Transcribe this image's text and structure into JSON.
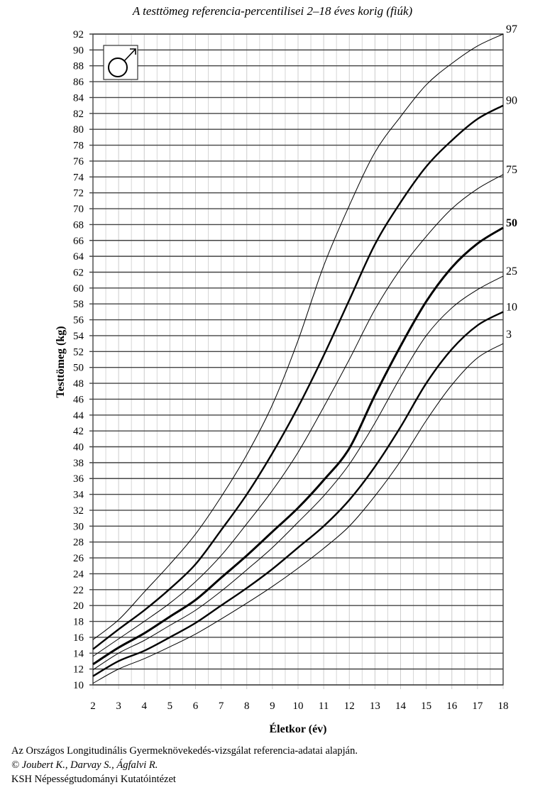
{
  "chart_data": {
    "type": "line",
    "title": "A testtömeg referencia-percentilisei 2–18 éves korig (fiúk)",
    "xlabel": "Életkor (év)",
    "ylabel": "Testtömeg (kg)",
    "xlim": [
      2,
      18
    ],
    "ylim": [
      10,
      92
    ],
    "x_ticks": [
      "2",
      "3",
      "4",
      "5",
      "6",
      "7",
      "8",
      "9",
      "10",
      "11",
      "12",
      "13",
      "14",
      "15",
      "16",
      "17",
      "18"
    ],
    "y_ticks": [
      "10",
      "12",
      "14",
      "16",
      "18",
      "20",
      "22",
      "24",
      "26",
      "28",
      "30",
      "32",
      "34",
      "36",
      "38",
      "40",
      "42",
      "44",
      "46",
      "48",
      "50",
      "52",
      "54",
      "56",
      "58",
      "60",
      "62",
      "64",
      "66",
      "68",
      "70",
      "72",
      "74",
      "76",
      "78",
      "80",
      "82",
      "84",
      "86",
      "88",
      "90",
      "92"
    ],
    "grid": {
      "horizontal_step_kg": 2,
      "vertical_step_years": 0.5
    },
    "symbol": "male-symbol",
    "x": [
      2,
      3,
      4,
      5,
      6,
      7,
      8,
      9,
      10,
      11,
      12,
      13,
      14,
      15,
      16,
      17,
      18
    ],
    "series": [
      {
        "name": "97",
        "weight": "thin",
        "values": [
          15.7,
          18.2,
          21.7,
          25.2,
          29.0,
          33.7,
          39.0,
          45.3,
          53.4,
          62.8,
          70.4,
          77.1,
          81.6,
          85.6,
          88.3,
          90.5,
          92.0
        ]
      },
      {
        "name": "90",
        "weight": "bold",
        "values": [
          14.5,
          17.0,
          19.4,
          22.1,
          25.2,
          29.5,
          34.0,
          39.2,
          45.0,
          51.5,
          58.5,
          65.5,
          70.8,
          75.3,
          78.6,
          81.3,
          83.0
        ]
      },
      {
        "name": "75",
        "weight": "thin",
        "values": [
          13.6,
          15.8,
          18.0,
          20.3,
          23.0,
          26.3,
          30.3,
          34.5,
          39.3,
          45.0,
          51.0,
          57.3,
          62.4,
          66.5,
          70.0,
          72.5,
          74.3
        ]
      },
      {
        "name": "50",
        "weight": "heavy",
        "values": [
          12.6,
          14.7,
          16.5,
          18.6,
          20.7,
          23.5,
          26.3,
          29.3,
          32.3,
          35.8,
          39.8,
          46.5,
          52.7,
          58.3,
          62.6,
          65.6,
          67.6
        ]
      },
      {
        "name": "25",
        "weight": "thin",
        "values": [
          11.9,
          14.0,
          15.6,
          17.5,
          19.4,
          21.8,
          24.5,
          27.3,
          30.5,
          33.8,
          37.8,
          43.0,
          48.8,
          54.0,
          57.5,
          59.8,
          61.5
        ]
      },
      {
        "name": "10",
        "weight": "bold",
        "values": [
          11.1,
          13.0,
          14.3,
          16.0,
          17.8,
          20.0,
          22.2,
          24.6,
          27.3,
          30.0,
          33.3,
          37.5,
          42.5,
          48.0,
          52.3,
          55.3,
          57.0
        ]
      },
      {
        "name": "3",
        "weight": "thin",
        "values": [
          10.2,
          12.0,
          13.3,
          14.8,
          16.4,
          18.3,
          20.3,
          22.4,
          24.7,
          27.2,
          30.0,
          33.8,
          38.2,
          43.3,
          47.8,
          51.2,
          53.0
        ]
      }
    ]
  },
  "footer": {
    "line1": "Az Országos Longitudinális Gyermeknövekedés-vizsgálat referencia-adatai alapján.",
    "line2": "© Joubert K., Darvay S., Ágfalvi R.",
    "line3": "KSH Népességtudományi Kutatóintézet"
  }
}
